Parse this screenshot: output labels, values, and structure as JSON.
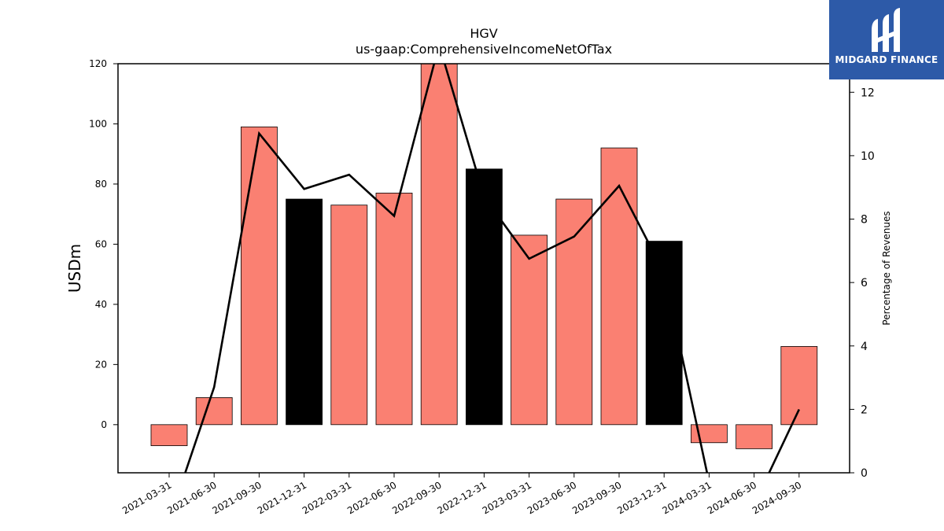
{
  "chart_data": {
    "type": "bar",
    "title": "HGV",
    "subtitle": "us-gaap:ComprehensiveIncomeNetOfTax",
    "ylabel": "USDm",
    "y2label": "Percentage of Revenues",
    "categories": [
      "2021-03-31",
      "2021-06-30",
      "2021-09-30",
      "2021-12-31",
      "2022-03-31",
      "2022-06-30",
      "2022-09-30",
      "2022-12-31",
      "2023-03-31",
      "2023-06-30",
      "2023-09-30",
      "2023-12-31",
      "2024-03-31",
      "2024-06-30",
      "2024-09-30"
    ],
    "series": [
      {
        "kind": "bar",
        "axis": "left",
        "values": [
          -7,
          9,
          99,
          75,
          73,
          77,
          121,
          85,
          63,
          75,
          92,
          61,
          -6,
          -8,
          26
        ],
        "colors": [
          "#fa8072",
          "#fa8072",
          "#fa8072",
          "#000000",
          "#fa8072",
          "#fa8072",
          "#fa8072",
          "#000000",
          "#fa8072",
          "#fa8072",
          "#fa8072",
          "#000000",
          "#fa8072",
          "#fa8072",
          "#fa8072"
        ]
      },
      {
        "kind": "line",
        "axis": "right",
        "color": "#000000",
        "values": [
          -1.5,
          2.7,
          10.7,
          8.95,
          9.4,
          8.1,
          13.5,
          8.7,
          6.75,
          7.45,
          9.05,
          6.3,
          -0.3,
          -1.0,
          2.0
        ]
      }
    ],
    "ylim": [
      -16,
      120
    ],
    "yticks": [
      0,
      20,
      40,
      60,
      80,
      100,
      120
    ],
    "y2lim": [
      0,
      12.9
    ],
    "y2ticks": [
      0,
      2,
      4,
      6,
      8,
      10,
      12
    ],
    "grid": false,
    "legend": "none"
  },
  "logo": {
    "text": "MIDGARD FINANCE",
    "background": "#2d5aa8"
  }
}
